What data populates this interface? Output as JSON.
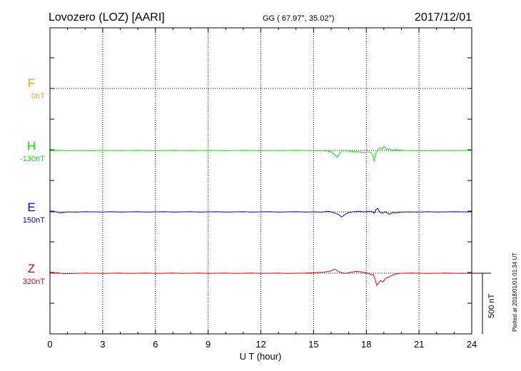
{
  "header": {
    "station": "Lovozero (LOZ)  [AARI]",
    "coords": "GG ( 67.97°,  35.02°)",
    "date": "2017/12/01"
  },
  "footer_note": "Plotted at 2018/01/01 01:34 UT",
  "chart_data": {
    "type": "line",
    "xlabel": "U T (hour)",
    "xlim": [
      0,
      24
    ],
    "xticks": [
      0,
      3,
      6,
      9,
      12,
      15,
      18,
      21,
      24
    ],
    "xtick_labels": [
      "0",
      "3",
      "6",
      "9",
      "12",
      "15",
      "18",
      "21",
      "24"
    ],
    "grid": true,
    "scale_bar_label": "500 nT",
    "scale_bar_nT": 500,
    "series": [
      {
        "name": "F",
        "baseline_label": "0nT",
        "color": "#f5a300",
        "baseline_value": 0,
        "points": []
      },
      {
        "name": "H",
        "baseline_label": "-130nT",
        "color": "#00ee00",
        "baseline_value": -130,
        "points": [
          [
            0,
            -130
          ],
          [
            0.5,
            -131
          ],
          [
            1,
            -129
          ],
          [
            1.5,
            -130
          ],
          [
            2,
            -128
          ],
          [
            2.5,
            -129
          ],
          [
            3,
            -131
          ],
          [
            3.5,
            -130
          ],
          [
            4,
            -128
          ],
          [
            4.5,
            -130
          ],
          [
            5,
            -131
          ],
          [
            5.5,
            -129
          ],
          [
            6,
            -130
          ],
          [
            6.5,
            -129
          ],
          [
            7,
            -131
          ],
          [
            7.5,
            -130
          ],
          [
            8,
            -129
          ],
          [
            8.5,
            -130
          ],
          [
            9,
            -131
          ],
          [
            9.5,
            -130
          ],
          [
            10,
            -129
          ],
          [
            10.5,
            -130
          ],
          [
            11,
            -131
          ],
          [
            11.5,
            -130
          ],
          [
            12,
            -129
          ],
          [
            12.5,
            -130
          ],
          [
            13,
            -129
          ],
          [
            13.5,
            -130
          ],
          [
            14,
            -131
          ],
          [
            14.5,
            -130
          ],
          [
            15,
            -129
          ],
          [
            15.5,
            -128
          ],
          [
            15.8,
            -126
          ],
          [
            16,
            -118
          ],
          [
            16.2,
            -96
          ],
          [
            16.35,
            -75
          ],
          [
            16.5,
            -110
          ],
          [
            16.6,
            -128
          ],
          [
            16.8,
            -130
          ],
          [
            17,
            -125
          ],
          [
            17.3,
            -120
          ],
          [
            17.6,
            -118
          ],
          [
            17.9,
            -112
          ],
          [
            18.1,
            -118
          ],
          [
            18.25,
            -115
          ],
          [
            18.35,
            -100
          ],
          [
            18.45,
            -40
          ],
          [
            18.55,
            -110
          ],
          [
            18.7,
            -145
          ],
          [
            18.8,
            -155
          ],
          [
            18.9,
            -140
          ],
          [
            19.0,
            -165
          ],
          [
            19.1,
            -150
          ],
          [
            19.2,
            -135
          ],
          [
            19.3,
            -145
          ],
          [
            19.5,
            -133
          ],
          [
            19.7,
            -138
          ],
          [
            20,
            -131
          ],
          [
            20.5,
            -129
          ],
          [
            21,
            -130
          ],
          [
            21.5,
            -128
          ],
          [
            22,
            -129
          ],
          [
            22.5,
            -130
          ],
          [
            23,
            -129
          ],
          [
            23.5,
            -130
          ],
          [
            24,
            -130
          ]
        ]
      },
      {
        "name": "E",
        "baseline_label": "150nT",
        "color": "#0000dd",
        "baseline_value": 150,
        "points": [
          [
            0,
            150
          ],
          [
            0.3,
            149
          ],
          [
            0.6,
            158
          ],
          [
            1,
            150
          ],
          [
            1.5,
            151
          ],
          [
            2,
            149
          ],
          [
            2.5,
            150
          ],
          [
            3,
            152
          ],
          [
            3.5,
            149
          ],
          [
            4,
            151
          ],
          [
            4.5,
            150
          ],
          [
            5,
            148
          ],
          [
            5.5,
            151
          ],
          [
            6,
            150
          ],
          [
            6.5,
            149
          ],
          [
            7,
            152
          ],
          [
            7.5,
            150
          ],
          [
            8,
            148
          ],
          [
            8.5,
            151
          ],
          [
            9,
            150
          ],
          [
            9.5,
            149
          ],
          [
            10,
            151
          ],
          [
            10.5,
            150
          ],
          [
            11,
            149
          ],
          [
            11.5,
            151
          ],
          [
            12,
            150
          ],
          [
            12.5,
            149
          ],
          [
            13,
            151
          ],
          [
            13.5,
            150
          ],
          [
            14,
            149
          ],
          [
            14.5,
            151
          ],
          [
            15,
            150
          ],
          [
            15.5,
            151
          ],
          [
            15.8,
            145
          ],
          [
            16.0,
            150
          ],
          [
            16.2,
            160
          ],
          [
            16.4,
            170
          ],
          [
            16.6,
            192
          ],
          [
            16.8,
            170
          ],
          [
            17,
            155
          ],
          [
            17.3,
            148
          ],
          [
            17.6,
            145
          ],
          [
            17.9,
            150
          ],
          [
            18.1,
            147
          ],
          [
            18.3,
            145
          ],
          [
            18.45,
            162
          ],
          [
            18.55,
            130
          ],
          [
            18.65,
            120
          ],
          [
            18.75,
            150
          ],
          [
            18.9,
            160
          ],
          [
            19.1,
            150
          ],
          [
            19.3,
            170
          ],
          [
            19.5,
            155
          ],
          [
            19.7,
            158
          ],
          [
            20,
            152
          ],
          [
            20.5,
            150
          ],
          [
            21,
            151
          ],
          [
            21.5,
            149
          ],
          [
            22,
            151
          ],
          [
            22.5,
            150
          ],
          [
            23,
            149
          ],
          [
            23.5,
            150
          ],
          [
            24,
            150
          ]
        ]
      },
      {
        "name": "Z",
        "baseline_label": "320nT",
        "color": "#ee0000",
        "baseline_value": 320,
        "points": [
          [
            0,
            320
          ],
          [
            0.4,
            316
          ],
          [
            0.8,
            324
          ],
          [
            1.5,
            321
          ],
          [
            2,
            319
          ],
          [
            3,
            322
          ],
          [
            3.5,
            320
          ],
          [
            4,
            318
          ],
          [
            4.5,
            321
          ],
          [
            5,
            320
          ],
          [
            5.5,
            319
          ],
          [
            6,
            322
          ],
          [
            6.5,
            320
          ],
          [
            7,
            318
          ],
          [
            7.5,
            321
          ],
          [
            8,
            320
          ],
          [
            8.5,
            319
          ],
          [
            9,
            322
          ],
          [
            9.5,
            320
          ],
          [
            10,
            319
          ],
          [
            10.5,
            321
          ],
          [
            11,
            320
          ],
          [
            11.5,
            319
          ],
          [
            12,
            321
          ],
          [
            12.5,
            320
          ],
          [
            13,
            319
          ],
          [
            13.5,
            321
          ],
          [
            14,
            320
          ],
          [
            14.5,
            319
          ],
          [
            15,
            316
          ],
          [
            15.5,
            312
          ],
          [
            15.8,
            306
          ],
          [
            16.0,
            300
          ],
          [
            16.2,
            285
          ],
          [
            16.35,
            300
          ],
          [
            16.5,
            310
          ],
          [
            16.8,
            322
          ],
          [
            17.1,
            312
          ],
          [
            17.4,
            305
          ],
          [
            17.7,
            308
          ],
          [
            17.9,
            314
          ],
          [
            18.1,
            320
          ],
          [
            18.3,
            332
          ],
          [
            18.4,
            330
          ],
          [
            18.5,
            370
          ],
          [
            18.6,
            420
          ],
          [
            18.7,
            400
          ],
          [
            18.8,
            380
          ],
          [
            18.95,
            390
          ],
          [
            19.1,
            362
          ],
          [
            19.3,
            350
          ],
          [
            19.5,
            335
          ],
          [
            19.7,
            325
          ],
          [
            20,
            320
          ],
          [
            20.5,
            318
          ],
          [
            21,
            320
          ],
          [
            21.5,
            321
          ],
          [
            22,
            320
          ],
          [
            22.5,
            319
          ],
          [
            23,
            320
          ],
          [
            23.5,
            321
          ],
          [
            24,
            320
          ]
        ]
      }
    ]
  }
}
